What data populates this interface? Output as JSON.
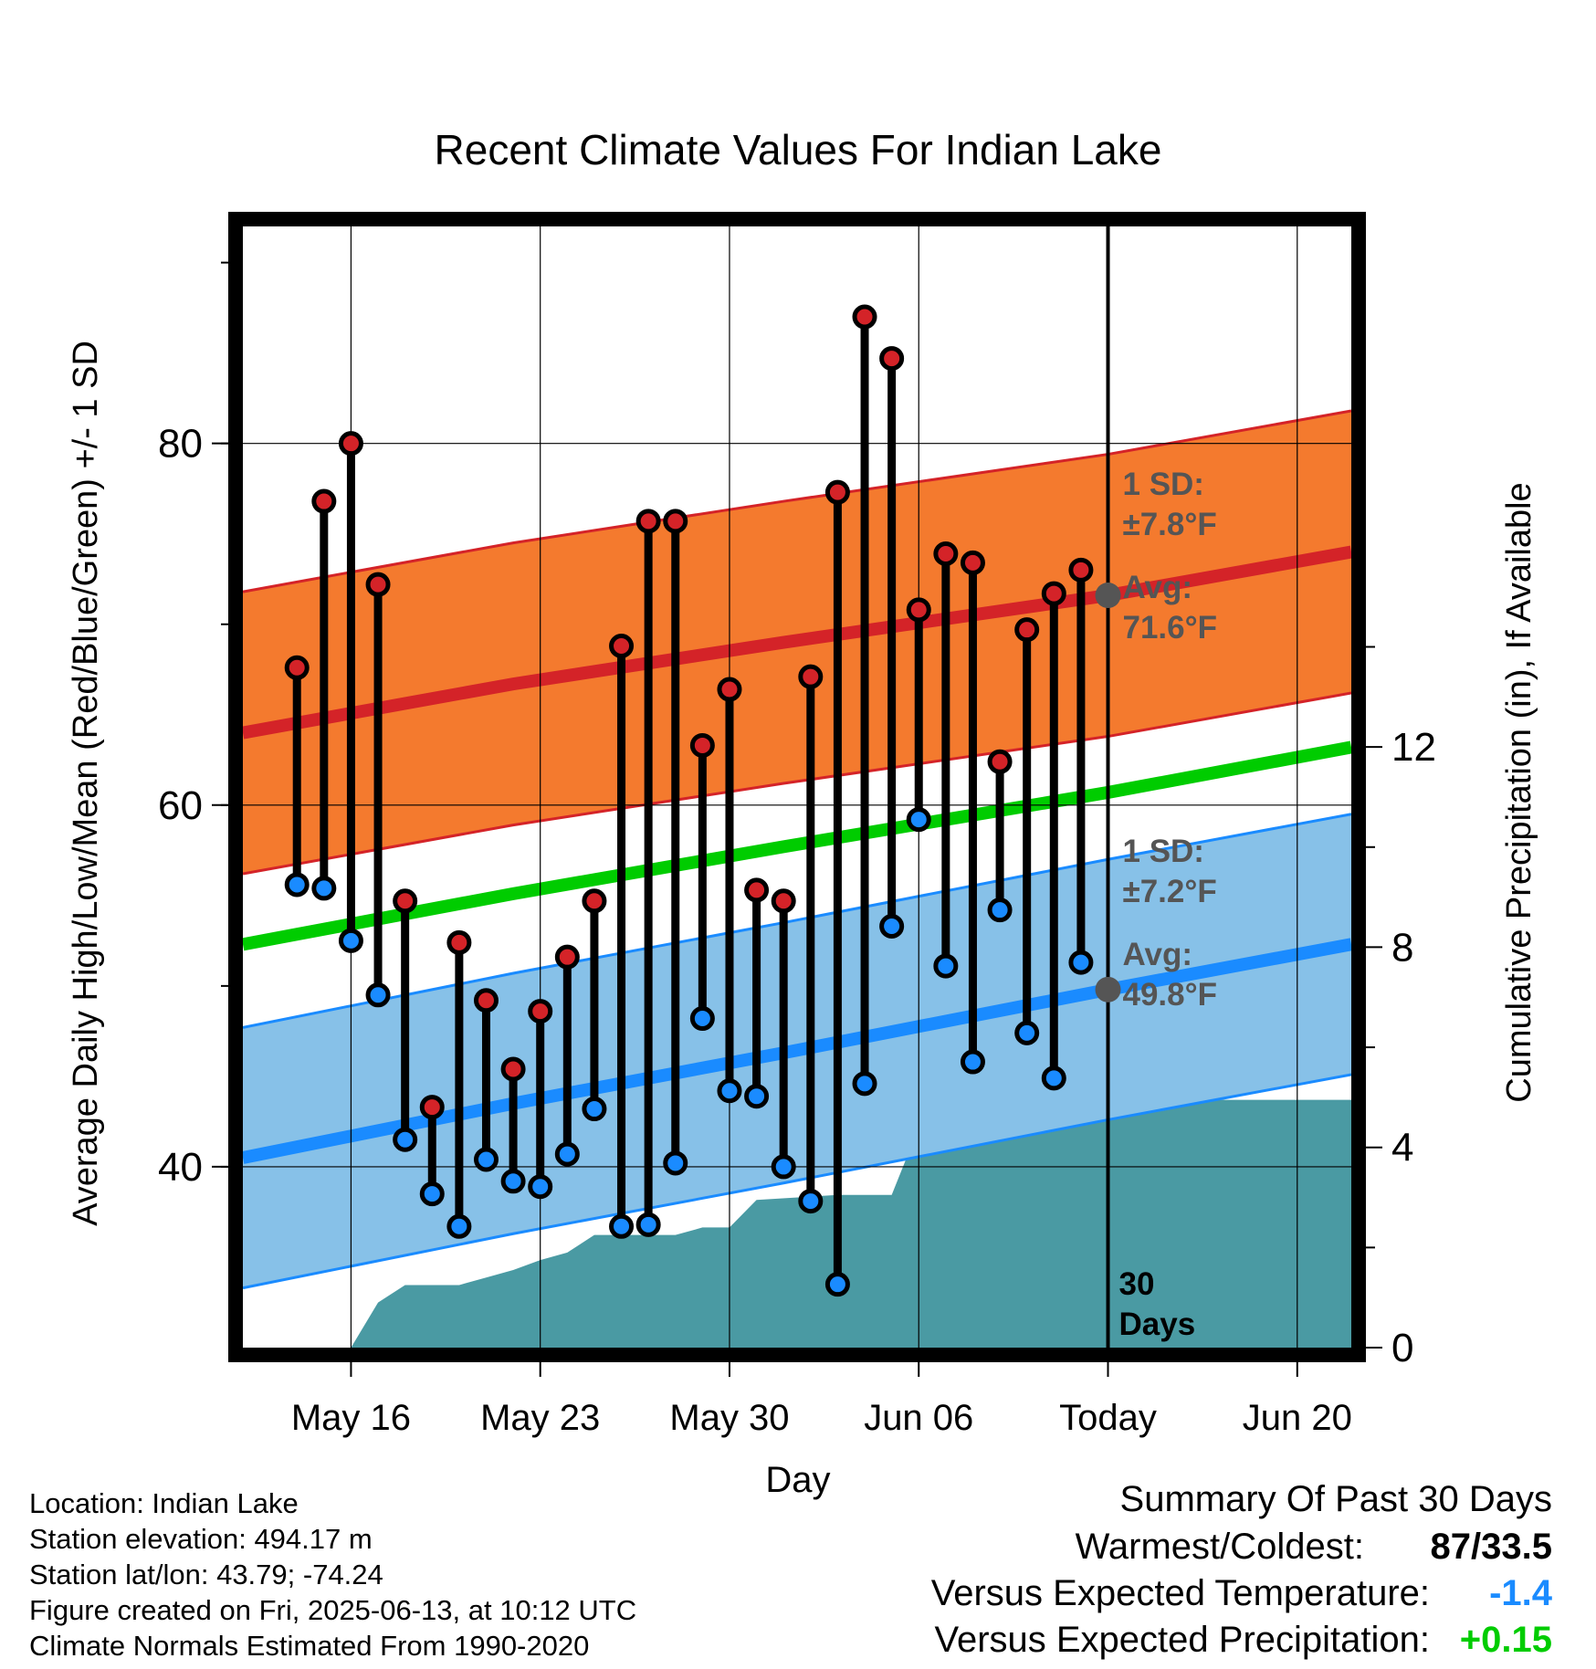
{
  "chart_data": {
    "type": "line",
    "title": "Recent Climate Values For Indian Lake",
    "xlabel": "Day",
    "ylabel": "Average Daily High/Low/Mean (Red/Blue/Green) +/- 1 SD",
    "y2label": "Cumulative Precipitation (in), If Available",
    "ylim": [
      30,
      92
    ],
    "y2lim": [
      0,
      22.4
    ],
    "yticks": [
      "40",
      "60",
      "80"
    ],
    "y2ticks": [
      "0",
      "4",
      "8",
      "12"
    ],
    "xlim": [
      "2025-05-12",
      "2025-06-22"
    ],
    "xticks": [
      {
        "date": "2025-05-16",
        "label": "May 16"
      },
      {
        "date": "2025-05-23",
        "label": "May 23"
      },
      {
        "date": "2025-05-30",
        "label": "May 30"
      },
      {
        "date": "2025-06-06",
        "label": "Jun 06"
      },
      {
        "date": "2025-06-13",
        "label": "Today"
      },
      {
        "date": "2025-06-20",
        "label": "Jun 20"
      }
    ],
    "today": "2025-06-13",
    "window_label": [
      "30",
      "Days"
    ],
    "normals": {
      "dates": [
        "2025-05-12",
        "2025-05-22",
        "2025-06-01",
        "2025-06-13",
        "2025-06-22"
      ],
      "high_mean": [
        64.0,
        66.7,
        69.0,
        71.6,
        74.0
      ],
      "low_mean": [
        40.5,
        43.5,
        46.3,
        49.8,
        52.3
      ],
      "avg_mean": [
        52.3,
        55.1,
        57.7,
        60.7,
        63.2
      ],
      "high_sd": 7.8,
      "low_sd": 7.2
    },
    "annotations": {
      "high_sd": [
        "1 SD:",
        "±7.8°F"
      ],
      "high_avg": [
        "Avg:",
        "71.6°F"
      ],
      "low_sd": [
        "1 SD:",
        "±7.2°F"
      ],
      "low_avg": [
        "Avg:",
        "49.8°F"
      ]
    },
    "observations": {
      "dates": [
        "2025-05-14",
        "2025-05-15",
        "2025-05-16",
        "2025-05-17",
        "2025-05-18",
        "2025-05-19",
        "2025-05-20",
        "2025-05-21",
        "2025-05-22",
        "2025-05-23",
        "2025-05-24",
        "2025-05-25",
        "2025-05-26",
        "2025-05-27",
        "2025-05-28",
        "2025-05-29",
        "2025-05-30",
        "2025-05-31",
        "2025-06-01",
        "2025-06-02",
        "2025-06-03",
        "2025-06-04",
        "2025-06-05",
        "2025-06-06",
        "2025-06-07",
        "2025-06-08",
        "2025-06-09",
        "2025-06-10",
        "2025-06-11",
        "2025-06-12"
      ],
      "high": [
        67.6,
        76.8,
        80.0,
        72.2,
        54.7,
        43.3,
        52.4,
        49.2,
        45.4,
        48.6,
        51.6,
        54.7,
        68.8,
        75.7,
        75.7,
        63.3,
        66.4,
        55.3,
        54.7,
        67.1,
        77.3,
        87.0,
        84.7,
        70.8,
        73.9,
        73.4,
        62.4,
        69.7,
        71.7,
        73.0
      ],
      "low": [
        55.6,
        55.4,
        52.5,
        49.5,
        41.5,
        38.5,
        36.7,
        40.4,
        39.2,
        38.9,
        40.7,
        43.2,
        36.7,
        36.8,
        40.2,
        48.2,
        44.2,
        43.9,
        40.0,
        38.1,
        33.5,
        44.6,
        53.3,
        59.2,
        51.1,
        45.8,
        54.2,
        47.4,
        44.9,
        51.3
      ]
    },
    "precipitation": {
      "dates": [
        "2025-05-16",
        "2025-05-17",
        "2025-05-18",
        "2025-05-20",
        "2025-05-21",
        "2025-05-22",
        "2025-05-23",
        "2025-05-24",
        "2025-05-25",
        "2025-05-26",
        "2025-05-28",
        "2025-05-29",
        "2025-05-30",
        "2025-05-31",
        "2025-06-03",
        "2025-06-04",
        "2025-06-05",
        "2025-06-06",
        "2025-06-07",
        "2025-06-08",
        "2025-06-09",
        "2025-06-10",
        "2025-06-22"
      ],
      "values": [
        0,
        0.9,
        1.25,
        1.25,
        1.4,
        1.55,
        1.75,
        1.9,
        2.25,
        2.25,
        2.25,
        2.4,
        2.4,
        2.95,
        3.05,
        3.05,
        3.05,
        4.4,
        4.4,
        4.4,
        4.5,
        4.95,
        4.95
      ]
    },
    "colors": {
      "high": "#d42328",
      "high_band": "#f47a2e",
      "low": "#1a8bff",
      "low_band": "#87c1e8",
      "avg": "#00cc00",
      "precip": "#4a9aa3",
      "annotation": "#555555"
    }
  },
  "meta": {
    "location": "Location: Indian Lake",
    "elevation": "Station elevation: 494.17 m",
    "latlon": "Station lat/lon: 43.79; -74.24",
    "created": "Figure created on Fri, 2025-06-13, at 10:12 UTC",
    "normals": "Climate Normals Estimated From 1990-2020"
  },
  "summary": {
    "title": "Summary Of Past 30 Days",
    "extremes_label": "Warmest/Coldest:",
    "extremes_value": "87/33.5",
    "temp_label": "Versus Expected Temperature:",
    "temp_value": "-1.4",
    "precip_label": "Versus Expected Precipitation:",
    "precip_value": "+0.15",
    "temp_color": "#1a8bff",
    "precip_color": "#00cc00"
  }
}
